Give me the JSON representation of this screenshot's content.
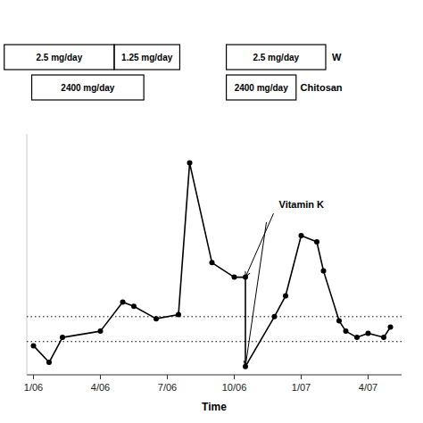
{
  "chart_data": {
    "type": "line",
    "xlabel": "Time",
    "x": [
      0,
      0.7,
      1.3,
      3,
      4,
      4.5,
      5.5,
      6.5,
      7,
      8,
      9,
      9.5,
      9.5,
      10.8,
      11.3,
      12,
      12.7,
      13,
      13.7,
      14,
      14.5,
      15,
      15.7,
      16
    ],
    "series": [
      {
        "color": "#000000",
        "marker": "circle",
        "values": [
          1.7,
          1.3,
          1.9,
          2.05,
          2.75,
          2.65,
          2.35,
          2.45,
          6.1,
          3.7,
          3.35,
          3.35,
          1.2,
          2.4,
          2.9,
          4.35,
          4.2,
          3.5,
          2.3,
          2.05,
          1.9,
          2.0,
          1.9,
          2.15
        ]
      }
    ],
    "xlim": [
      -0.3,
      16.5
    ],
    "xticks": [
      {
        "value": 0,
        "label": "1/06"
      },
      {
        "value": 3,
        "label": "4/06"
      },
      {
        "value": 6,
        "label": "7/06"
      },
      {
        "value": 9,
        "label": "10/06"
      },
      {
        "value": 12,
        "label": "1/07"
      },
      {
        "value": 15,
        "label": "4/07"
      }
    ],
    "ylim": [
      1.0,
      6.8
    ],
    "tick_labels": "x",
    "hlines": [
      {
        "value": 1.8,
        "line_style": "dotted"
      },
      {
        "value": 2.4,
        "line_style": "dotted"
      }
    ],
    "annotations": [
      {
        "text": "Vitamin K",
        "x": 11.0,
        "y": 5.1,
        "points_to": [
          [
            9.5,
            3.35
          ],
          [
            9.5,
            1.2
          ]
        ]
      }
    ],
    "header": [
      {
        "label": "W",
        "boxes": [
          "2.5 mg/day",
          "1.25 mg/day",
          "2.5 mg/day"
        ]
      },
      {
        "label": "Chitosan",
        "boxes": [
          "2400 mg/day",
          "2400 mg/day"
        ]
      }
    ]
  }
}
